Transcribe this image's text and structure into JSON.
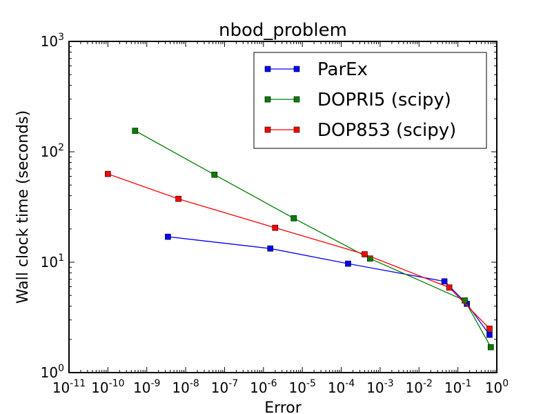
{
  "chart_data": {
    "type": "line",
    "title": "nbod_problem",
    "xlabel": "Error",
    "ylabel": "Wall clock time (seconds)",
    "xscale": "log",
    "yscale": "log",
    "xlim": [
      1e-11,
      1
    ],
    "ylim": [
      1,
      1000
    ],
    "grid": false,
    "legend_position": "top-right",
    "x_ticks": [
      {
        "base": "10",
        "exp": "-11",
        "value": 1e-11
      },
      {
        "base": "10",
        "exp": "-10",
        "value": 1e-10
      },
      {
        "base": "10",
        "exp": "-9",
        "value": 1e-09
      },
      {
        "base": "10",
        "exp": "-8",
        "value": 1e-08
      },
      {
        "base": "10",
        "exp": "-7",
        "value": 1e-07
      },
      {
        "base": "10",
        "exp": "-6",
        "value": 1e-06
      },
      {
        "base": "10",
        "exp": "-5",
        "value": 1e-05
      },
      {
        "base": "10",
        "exp": "-4",
        "value": 0.0001
      },
      {
        "base": "10",
        "exp": "-3",
        "value": 0.001
      },
      {
        "base": "10",
        "exp": "-2",
        "value": 0.01
      },
      {
        "base": "10",
        "exp": "-1",
        "value": 0.1
      },
      {
        "base": "10",
        "exp": "0",
        "value": 1
      }
    ],
    "y_ticks": [
      {
        "base": "10",
        "exp": "0",
        "value": 1
      },
      {
        "base": "10",
        "exp": "1",
        "value": 10
      },
      {
        "base": "10",
        "exp": "2",
        "value": 100
      },
      {
        "base": "10",
        "exp": "3",
        "value": 1000
      }
    ],
    "series": [
      {
        "name": "ParEx",
        "color": "#0000ff",
        "points": [
          {
            "x": 3.5e-09,
            "y": 17
          },
          {
            "x": 1.5e-06,
            "y": 13.3
          },
          {
            "x": 0.00015,
            "y": 9.7
          },
          {
            "x": 0.045,
            "y": 6.7
          },
          {
            "x": 0.17,
            "y": 4.2
          },
          {
            "x": 0.65,
            "y": 2.2
          }
        ]
      },
      {
        "name": "DOPRI5 (scipy)",
        "color": "#007f00",
        "points": [
          {
            "x": 5e-10,
            "y": 155
          },
          {
            "x": 5.5e-08,
            "y": 62
          },
          {
            "x": 6e-06,
            "y": 25
          },
          {
            "x": 0.00055,
            "y": 10.8
          },
          {
            "x": 0.15,
            "y": 4.5
          },
          {
            "x": 0.7,
            "y": 1.7
          }
        ]
      },
      {
        "name": "DOP853 (scipy)",
        "color": "#ff0000",
        "points": [
          {
            "x": 1e-10,
            "y": 63
          },
          {
            "x": 6.5e-09,
            "y": 37.5
          },
          {
            "x": 2e-06,
            "y": 20.5
          },
          {
            "x": 0.0004,
            "y": 11.8
          },
          {
            "x": 0.06,
            "y": 5.9
          },
          {
            "x": 0.65,
            "y": 2.5
          }
        ]
      }
    ]
  }
}
